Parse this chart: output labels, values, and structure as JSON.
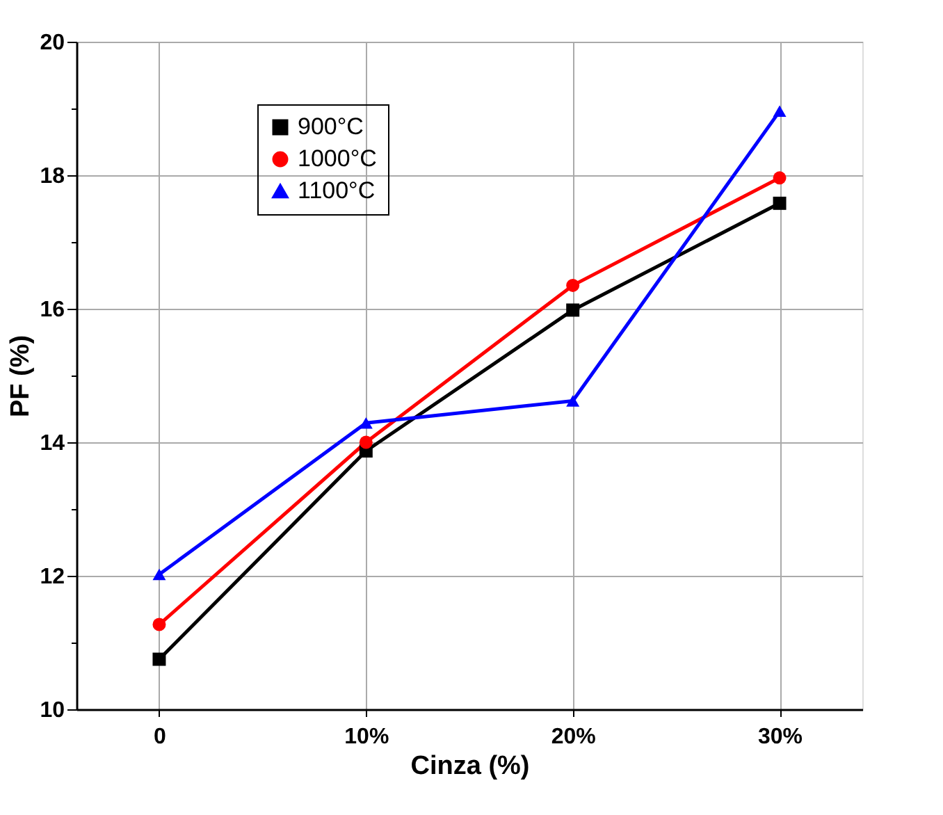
{
  "chart_data": {
    "type": "line",
    "xlabel": "Cinza (%)",
    "ylabel": "PF (%)",
    "categories": [
      "0",
      "10%",
      "20%",
      "30%"
    ],
    "series": [
      {
        "name": "900°C",
        "color": "#000000",
        "marker": "square",
        "values": [
          10.75,
          13.87,
          15.98,
          17.58
        ]
      },
      {
        "name": "1000°C",
        "color": "#ff0000",
        "marker": "circle",
        "values": [
          11.27,
          14.0,
          16.35,
          17.96
        ]
      },
      {
        "name": "1100°C",
        "color": "#0000ff",
        "marker": "triangle",
        "values": [
          12.02,
          14.29,
          14.62,
          18.96
        ]
      }
    ],
    "ylim": [
      10,
      20
    ],
    "yticks": [
      10,
      {
        "value": 11,
        "label": null
      },
      12,
      {
        "value": 13,
        "label": null
      },
      14,
      {
        "value": 15,
        "label": null
      },
      16,
      {
        "value": 17,
        "label": null
      },
      18,
      {
        "value": 19,
        "label": null
      },
      20
    ],
    "grid": true,
    "legend": "top left",
    "line_style": "solid"
  }
}
